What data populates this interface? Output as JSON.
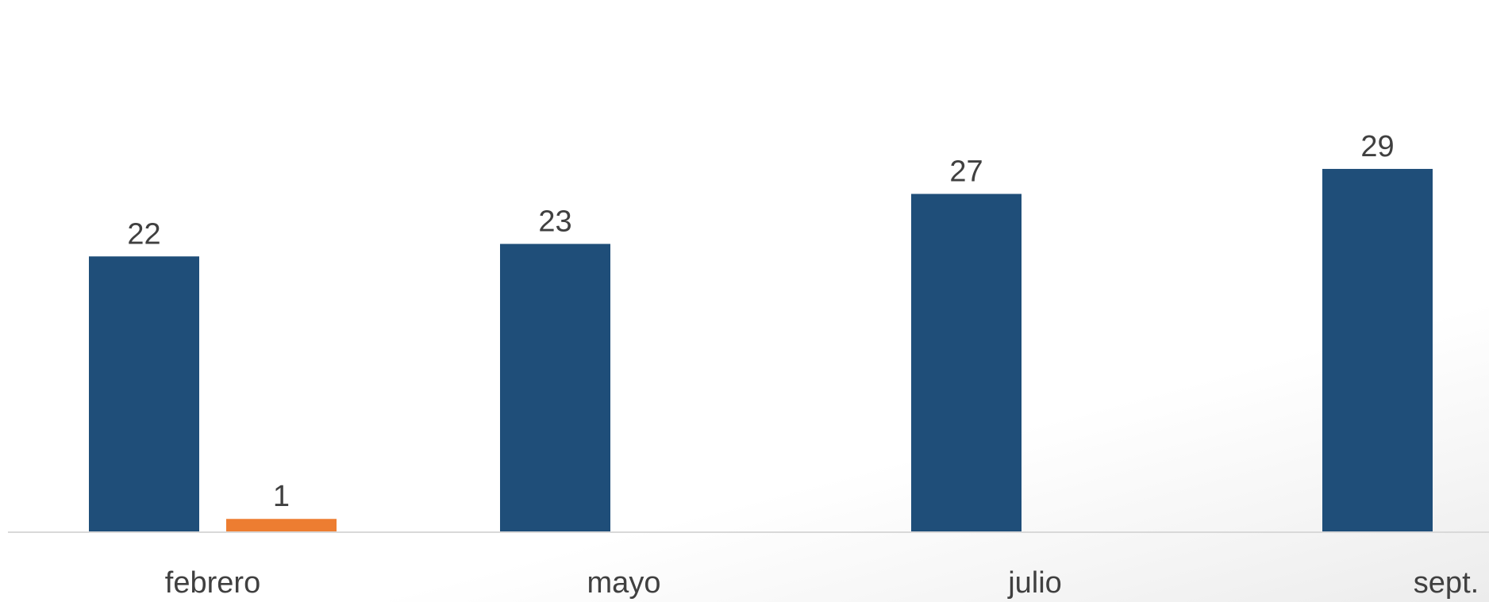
{
  "chart_data": {
    "type": "bar",
    "categories": [
      "febrero",
      "mayo",
      "julio",
      "sept."
    ],
    "series": [
      {
        "values": [
          22,
          23,
          27,
          29
        ],
        "color": "#1F4E79"
      },
      {
        "values": [
          1,
          null,
          null,
          null
        ],
        "color": "#ED7D31"
      }
    ],
    "data_labels": true,
    "grid": false,
    "legend": "none",
    "ylim": [
      0,
      29
    ]
  }
}
